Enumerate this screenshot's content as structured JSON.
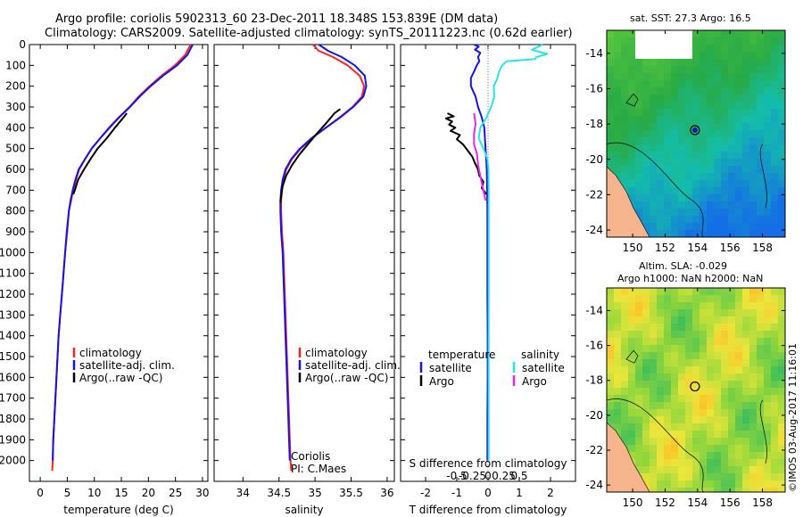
{
  "header": {
    "line1": "Argo profile: coriolis 5902313_60 23-Dec-2011 18.348S 153.839E (DM data)",
    "line2": "Climatology: CARS2009. Satellite-adjusted climatology: synTS_20111223.nc (0.62d earlier)"
  },
  "credit": "©IMOS 03-Aug-2017 11:16:01",
  "colors": {
    "climatology": "#ff2020",
    "satellite": "#1414e6",
    "argo": "#000000",
    "s_satellite": "#28e6e6",
    "s_argo": "#e628e6",
    "land": "#f5b48c",
    "zero_line": "#808080"
  },
  "chart_data": [
    {
      "type": "line",
      "name": "temperature-profile",
      "xlabel": "temperature (deg C)",
      "ylabel": "",
      "xlim": [
        -2,
        31
      ],
      "ylim": [
        2100,
        0
      ],
      "xticks": [
        0,
        5,
        10,
        15,
        20,
        25,
        30
      ],
      "yticks": [
        0,
        100,
        200,
        300,
        400,
        500,
        600,
        700,
        800,
        900,
        1000,
        1100,
        1200,
        1300,
        1400,
        1500,
        1600,
        1700,
        1800,
        1900,
        2000
      ],
      "legend": [
        "climatology",
        "satellite-adj. clim.",
        "Argo(..raw -QC)"
      ],
      "series": [
        {
          "name": "climatology",
          "color_key": "climatology",
          "points": [
            [
              27.8,
              0
            ],
            [
              26.8,
              50
            ],
            [
              24.9,
              100
            ],
            [
              22.4,
              150
            ],
            [
              20.2,
              200
            ],
            [
              18.2,
              250
            ],
            [
              16.5,
              300
            ],
            [
              14.5,
              350
            ],
            [
              12.7,
              400
            ],
            [
              11.1,
              450
            ],
            [
              9.5,
              500
            ],
            [
              8.3,
              550
            ],
            [
              7.2,
              600
            ],
            [
              6.6,
              650
            ],
            [
              6.1,
              700
            ],
            [
              5.7,
              750
            ],
            [
              5.3,
              800
            ],
            [
              5.0,
              900
            ],
            [
              4.6,
              1000
            ],
            [
              4.3,
              1100
            ],
            [
              4.0,
              1200
            ],
            [
              3.7,
              1300
            ],
            [
              3.4,
              1400
            ],
            [
              3.2,
              1500
            ],
            [
              3.0,
              1600
            ],
            [
              2.8,
              1700
            ],
            [
              2.6,
              1800
            ],
            [
              2.4,
              1900
            ],
            [
              2.3,
              2000
            ],
            [
              2.2,
              2050
            ]
          ]
        },
        {
          "name": "satellite-adj. clim.",
          "color_key": "satellite",
          "points": [
            [
              28.2,
              0
            ],
            [
              27.2,
              50
            ],
            [
              25.3,
              100
            ],
            [
              22.7,
              150
            ],
            [
              20.4,
              200
            ],
            [
              18.4,
              250
            ],
            [
              16.6,
              300
            ],
            [
              14.6,
              350
            ],
            [
              12.8,
              400
            ],
            [
              11.1,
              450
            ],
            [
              9.5,
              500
            ],
            [
              8.3,
              550
            ],
            [
              7.1,
              600
            ],
            [
              6.5,
              650
            ],
            [
              6.0,
              700
            ],
            [
              5.6,
              750
            ],
            [
              5.3,
              800
            ],
            [
              4.9,
              900
            ],
            [
              4.6,
              1000
            ],
            [
              4.3,
              1100
            ],
            [
              4.0,
              1200
            ],
            [
              3.7,
              1300
            ],
            [
              3.4,
              1400
            ],
            [
              3.2,
              1500
            ],
            [
              3.0,
              1600
            ],
            [
              2.8,
              1700
            ],
            [
              2.6,
              1800
            ],
            [
              2.4,
              1900
            ],
            [
              2.3,
              2000
            ]
          ]
        },
        {
          "name": "Argo(..raw -QC)",
          "color_key": "argo",
          "points": [
            [
              16.0,
              330
            ],
            [
              15.4,
              350
            ],
            [
              13.8,
              400
            ],
            [
              12.3,
              450
            ],
            [
              10.6,
              500
            ],
            [
              9.3,
              550
            ],
            [
              8.1,
              600
            ],
            [
              7.0,
              650
            ],
            [
              6.4,
              700
            ],
            [
              6.1,
              720
            ]
          ]
        }
      ]
    },
    {
      "type": "line",
      "name": "salinity-profile",
      "xlabel": "salinity",
      "ylabel": "",
      "xlim": [
        33.6,
        36.1
      ],
      "ylim": [
        2100,
        0
      ],
      "xticks": [
        34,
        34.5,
        35,
        35.5,
        36
      ],
      "legend": [
        "climatology",
        "satellite-adj. clim.",
        "Argo(..raw -QC)"
      ],
      "annotation": [
        "Coriolis",
        "PI: C.Maes"
      ],
      "series": [
        {
          "name": "climatology",
          "color_key": "climatology",
          "points": [
            [
              34.97,
              0
            ],
            [
              35.05,
              30
            ],
            [
              35.25,
              60
            ],
            [
              35.45,
              100
            ],
            [
              35.62,
              150
            ],
            [
              35.68,
              200
            ],
            [
              35.65,
              250
            ],
            [
              35.52,
              300
            ],
            [
              35.34,
              350
            ],
            [
              35.15,
              400
            ],
            [
              34.96,
              450
            ],
            [
              34.8,
              500
            ],
            [
              34.68,
              550
            ],
            [
              34.6,
              600
            ],
            [
              34.56,
              650
            ],
            [
              34.54,
              700
            ],
            [
              34.53,
              750
            ],
            [
              34.53,
              800
            ],
            [
              34.54,
              900
            ],
            [
              34.56,
              1000
            ],
            [
              34.57,
              1100
            ],
            [
              34.58,
              1200
            ],
            [
              34.59,
              1300
            ],
            [
              34.6,
              1400
            ],
            [
              34.61,
              1500
            ],
            [
              34.62,
              1600
            ],
            [
              34.63,
              1700
            ],
            [
              34.64,
              1800
            ],
            [
              34.65,
              1900
            ],
            [
              34.66,
              2000
            ],
            [
              34.67,
              2050
            ]
          ]
        },
        {
          "name": "satellite-adj. clim.",
          "color_key": "satellite",
          "points": [
            [
              35.05,
              0
            ],
            [
              35.18,
              30
            ],
            [
              35.37,
              60
            ],
            [
              35.55,
              100
            ],
            [
              35.69,
              150
            ],
            [
              35.71,
              200
            ],
            [
              35.67,
              250
            ],
            [
              35.53,
              300
            ],
            [
              35.35,
              350
            ],
            [
              35.15,
              400
            ],
            [
              34.95,
              450
            ],
            [
              34.79,
              500
            ],
            [
              34.67,
              550
            ],
            [
              34.59,
              600
            ],
            [
              34.55,
              650
            ],
            [
              34.53,
              700
            ],
            [
              34.52,
              750
            ],
            [
              34.52,
              800
            ],
            [
              34.53,
              900
            ],
            [
              34.55,
              1000
            ],
            [
              34.56,
              1100
            ],
            [
              34.57,
              1200
            ],
            [
              34.58,
              1300
            ],
            [
              34.59,
              1400
            ],
            [
              34.6,
              1500
            ],
            [
              34.61,
              1600
            ],
            [
              34.62,
              1700
            ],
            [
              34.63,
              1800
            ],
            [
              34.64,
              1900
            ],
            [
              34.65,
              2000
            ]
          ]
        },
        {
          "name": "Argo(..raw -QC)",
          "color_key": "argo",
          "points": [
            [
              35.35,
              310
            ],
            [
              35.27,
              330
            ],
            [
              35.15,
              380
            ],
            [
              35.02,
              430
            ],
            [
              34.9,
              480
            ],
            [
              34.78,
              530
            ],
            [
              34.68,
              580
            ],
            [
              34.6,
              630
            ],
            [
              34.55,
              680
            ],
            [
              34.53,
              730
            ],
            [
              34.52,
              760
            ]
          ]
        }
      ]
    },
    {
      "type": "line",
      "name": "difference-profile",
      "xlabel": "T difference from climatology",
      "xlabel_top": "S difference from climatology",
      "xlim": [
        -2.8,
        2.8
      ],
      "ylim": [
        2100,
        0
      ],
      "xticks": [
        -2,
        -1,
        0,
        1,
        2
      ],
      "xtick_labels_s": [
        "-0.5",
        "-0.25",
        "0",
        "0.25",
        "0.5"
      ],
      "legend": {
        "temperature_header": "temperature",
        "salinity_header": "salinity",
        "t_satellite": "satellite",
        "t_argo": "Argo",
        "s_satellite": "satellite",
        "s_argo": "Argo"
      },
      "series": [
        {
          "name": "T satellite",
          "color_key": "satellite",
          "points": [
            [
              -0.45,
              0
            ],
            [
              -0.3,
              10
            ],
            [
              -0.42,
              25
            ],
            [
              -0.25,
              40
            ],
            [
              -0.32,
              60
            ],
            [
              -0.28,
              80
            ],
            [
              -0.36,
              100
            ],
            [
              -0.45,
              130
            ],
            [
              -0.55,
              160
            ],
            [
              -0.55,
              200
            ],
            [
              -0.4,
              250
            ],
            [
              -0.32,
              300
            ],
            [
              -0.2,
              350
            ],
            [
              -0.12,
              400
            ],
            [
              -0.1,
              450
            ],
            [
              -0.08,
              500
            ],
            [
              -0.06,
              550
            ],
            [
              -0.04,
              600
            ],
            [
              -0.03,
              700
            ],
            [
              -0.02,
              800
            ],
            [
              -0.02,
              1000
            ],
            [
              -0.02,
              1200
            ],
            [
              -0.01,
              1400
            ],
            [
              -0.01,
              1600
            ],
            [
              -0.02,
              1800
            ],
            [
              -0.02,
              2000
            ]
          ]
        },
        {
          "name": "T Argo",
          "color_key": "argo",
          "points": [
            [
              -1.3,
              330
            ],
            [
              -1.1,
              345
            ],
            [
              -1.35,
              355
            ],
            [
              -1.15,
              370
            ],
            [
              -1.25,
              385
            ],
            [
              -1.05,
              400
            ],
            [
              -1.2,
              415
            ],
            [
              -0.9,
              435
            ],
            [
              -1.0,
              455
            ],
            [
              -0.8,
              480
            ],
            [
              -0.65,
              510
            ],
            [
              -0.5,
              540
            ],
            [
              -0.42,
              570
            ],
            [
              -0.32,
              600
            ],
            [
              -0.28,
              630
            ],
            [
              -0.15,
              660
            ],
            [
              -0.2,
              690
            ],
            [
              -0.05,
              720
            ]
          ]
        },
        {
          "name": "S satellite",
          "color_key": "s_satellite",
          "points": [
            [
              1.75,
              0
            ],
            [
              1.4,
              25
            ],
            [
              1.9,
              45
            ],
            [
              1.55,
              60
            ],
            [
              1.5,
              70
            ],
            [
              0.6,
              80
            ],
            [
              0.45,
              100
            ],
            [
              0.35,
              130
            ],
            [
              0.28,
              170
            ],
            [
              0.18,
              200
            ],
            [
              0.2,
              250
            ],
            [
              0.1,
              300
            ],
            [
              -0.05,
              350
            ],
            [
              -0.25,
              400
            ],
            [
              -0.3,
              450
            ],
            [
              -0.15,
              500
            ],
            [
              -0.02,
              550
            ],
            [
              0.01,
              600
            ],
            [
              0.02,
              700
            ],
            [
              0.02,
              800
            ],
            [
              0.02,
              1000
            ],
            [
              0.02,
              1200
            ],
            [
              0.02,
              1400
            ],
            [
              0.02,
              1600
            ],
            [
              0.02,
              1800
            ],
            [
              0.02,
              2000
            ]
          ]
        },
        {
          "name": "S Argo",
          "color_key": "s_argo",
          "points": [
            [
              -0.45,
              330
            ],
            [
              -0.4,
              380
            ],
            [
              -0.45,
              430
            ],
            [
              -0.45,
              480
            ],
            [
              -0.35,
              530
            ],
            [
              -0.32,
              580
            ],
            [
              -0.25,
              630
            ],
            [
              -0.18,
              680
            ],
            [
              -0.12,
              720
            ],
            [
              -0.08,
              750
            ]
          ]
        }
      ]
    },
    {
      "type": "heatmap",
      "name": "sst-map",
      "title": "sat. SST: 27.3 Argo: 16.5",
      "xlim": [
        148.4,
        159.4
      ],
      "ylim": [
        -24.4,
        -12.7
      ],
      "xticks": [
        150,
        152,
        154,
        156,
        158
      ],
      "yticks": [
        -14,
        -16,
        -18,
        -20,
        -22,
        -24
      ],
      "argo_position": [
        153.839,
        -18.348
      ]
    },
    {
      "type": "heatmap",
      "name": "sla-map",
      "title_line1": "Altim. SLA: -0.029",
      "title_line2": "Argo h1000: NaN h2000: NaN",
      "xlim": [
        148.4,
        159.4
      ],
      "ylim": [
        -24.4,
        -12.7
      ],
      "xticks": [
        150,
        152,
        154,
        156,
        158
      ],
      "yticks": [
        -14,
        -16,
        -18,
        -20,
        -22,
        -24
      ],
      "argo_position": [
        153.839,
        -18.348
      ]
    }
  ]
}
